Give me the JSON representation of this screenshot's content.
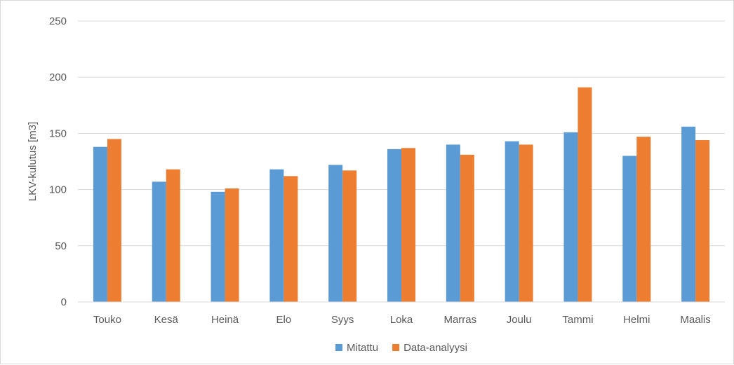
{
  "chart_data": {
    "type": "bar",
    "title": "",
    "xlabel": "",
    "ylabel": "LKV-kulutus [m3]",
    "ylim": [
      0,
      250
    ],
    "yticks": [
      0,
      50,
      100,
      150,
      200,
      250
    ],
    "grid": "horizontal",
    "legend_position": "bottom",
    "categories": [
      "Touko",
      "Kesä",
      "Heinä",
      "Elo",
      "Syys",
      "Loka",
      "Marras",
      "Joulu",
      "Tammi",
      "Helmi",
      "Maalis"
    ],
    "series": [
      {
        "name": "Mitattu",
        "color": "#5b9bd5",
        "values": [
          138,
          107,
          98,
          118,
          122,
          136,
          140,
          143,
          151,
          130,
          156
        ]
      },
      {
        "name": "Data-analyysi",
        "color": "#ed7d31",
        "values": [
          145,
          118,
          101,
          112,
          117,
          137,
          131,
          140,
          191,
          147,
          144
        ]
      }
    ]
  }
}
